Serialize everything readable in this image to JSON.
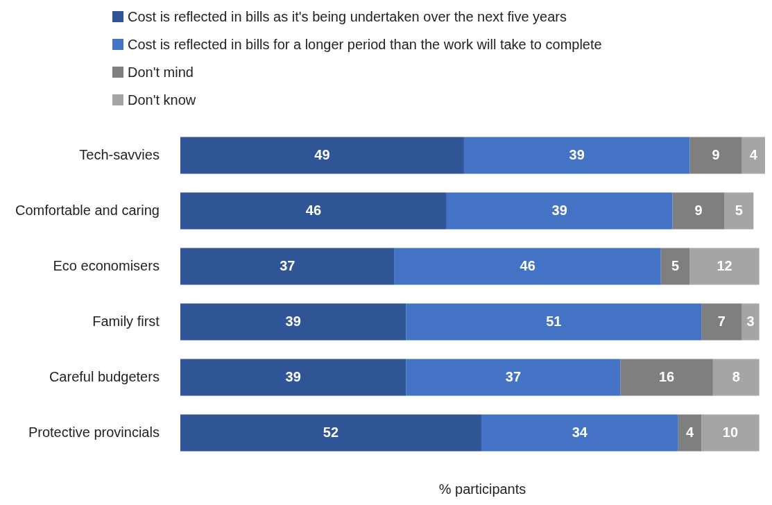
{
  "chart_data": {
    "type": "bar",
    "orientation": "horizontal",
    "stacked": true,
    "xlabel": "% participants",
    "categories": [
      "Tech-savvies",
      "Comfortable and caring",
      "Eco economisers",
      "Family first",
      "Careful budgeters",
      "Protective provincials"
    ],
    "series": [
      {
        "name": "Cost is reflected in bills as it's being undertaken over the next five years",
        "color": "#2f5597",
        "values": [
          49,
          46,
          37,
          39,
          39,
          52
        ]
      },
      {
        "name": "Cost is reflected in bills for a longer period than the work will take to complete",
        "color": "#4472c4",
        "values": [
          39,
          39,
          46,
          51,
          37,
          34
        ]
      },
      {
        "name": "Don't mind",
        "color": "#7f7f7f",
        "values": [
          9,
          9,
          5,
          7,
          16,
          4
        ]
      },
      {
        "name": "Don't know",
        "color": "#a5a5a5",
        "values": [
          4,
          5,
          12,
          3,
          8,
          10
        ]
      }
    ],
    "xlim": [
      0,
      101
    ],
    "data_labels": true,
    "legend": "top left",
    "tick_labels": "y"
  }
}
